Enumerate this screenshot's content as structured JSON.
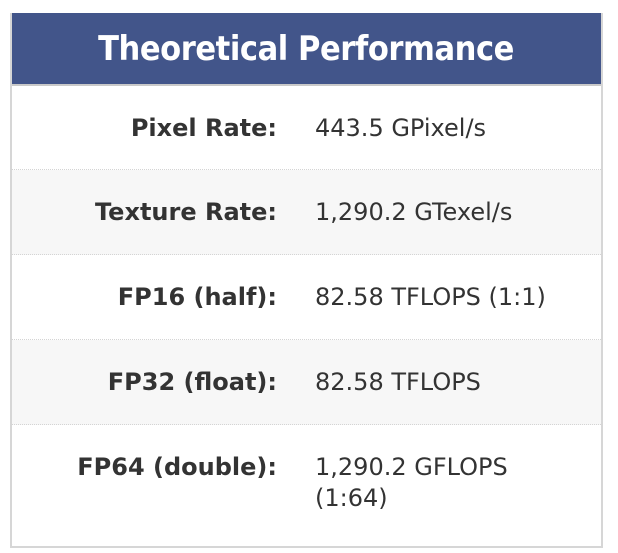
{
  "header": {
    "title": "Theoretical Performance"
  },
  "rows": [
    {
      "label": "Pixel Rate:",
      "value": "443.5 GPixel/s"
    },
    {
      "label": "Texture Rate:",
      "value": "1,290.2 GTexel/s"
    },
    {
      "label": "FP16 (half):",
      "value": "82.58 TFLOPS (1:1)"
    },
    {
      "label": "FP32 (float):",
      "value": "82.58 TFLOPS"
    },
    {
      "label": "FP64 (double):",
      "value": "1,290.2 GFLOPS (1:64)"
    }
  ],
  "colors": {
    "header_bg": "#42558a",
    "header_text": "#ffffff",
    "row_alt_bg": "#f7f7f7",
    "text": "#333333"
  }
}
